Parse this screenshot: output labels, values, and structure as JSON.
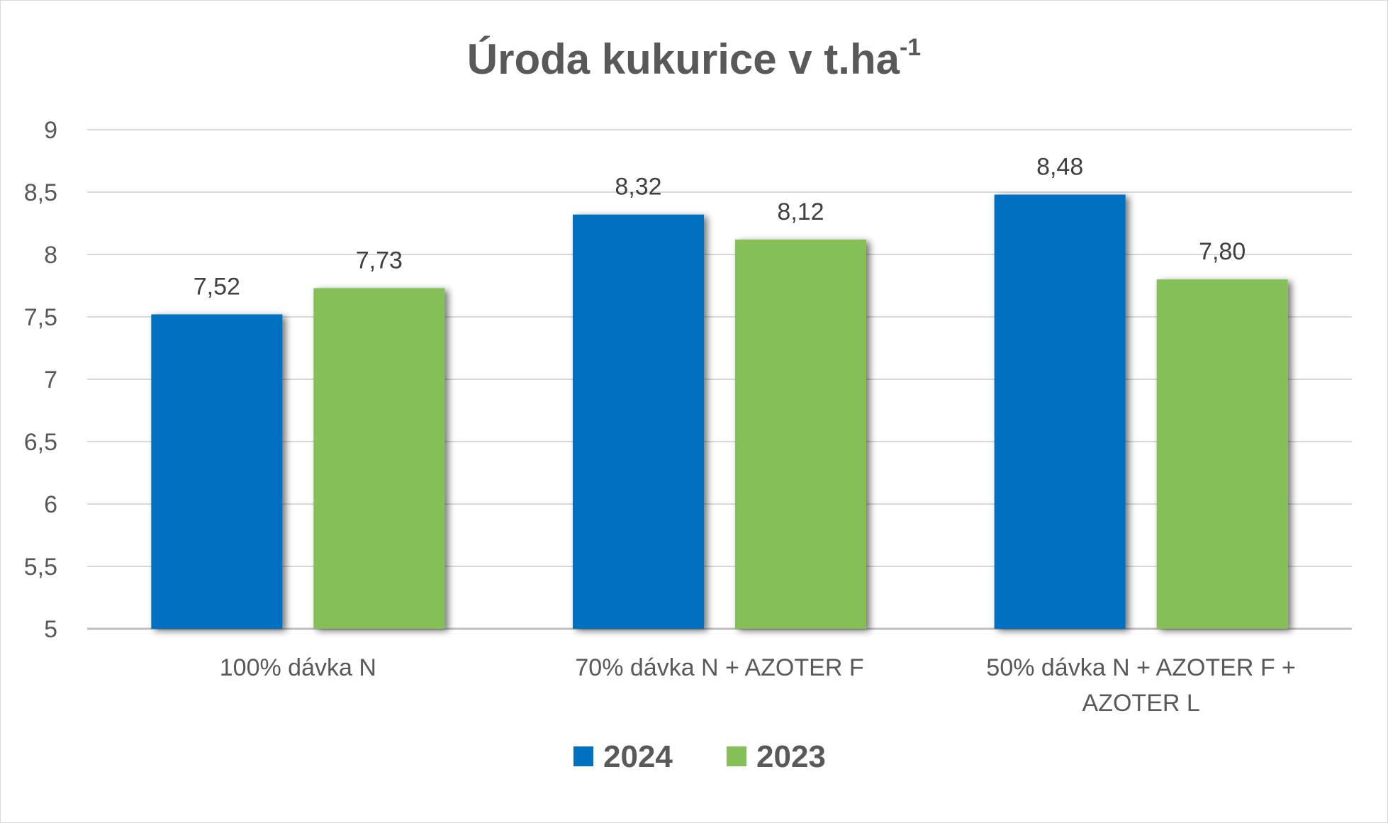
{
  "chart_data": {
    "type": "bar",
    "title": "Úroda kukurice v t.ha",
    "title_superscript": "-1",
    "categories": [
      "100% dávka N",
      "70% dávka N + AZOTER F",
      "50% dávka N + AZOTER F + AZOTER L"
    ],
    "series": [
      {
        "name": "2024",
        "values": [
          7.52,
          8.32,
          8.48
        ],
        "labels": [
          "7,52",
          "8,32",
          "8,48"
        ],
        "color": "#0070C0"
      },
      {
        "name": "2023",
        "values": [
          7.73,
          8.12,
          7.8
        ],
        "labels": [
          "7,73",
          "8,12",
          "7,80"
        ],
        "color": "#84BF58"
      }
    ],
    "ylim": [
      5,
      9
    ],
    "yticks": [
      5,
      5.5,
      6,
      6.5,
      7,
      7.5,
      8,
      8.5,
      9
    ],
    "ytick_labels": [
      "5",
      "5,5",
      "6",
      "6,5",
      "7",
      "7,5",
      "8",
      "8,5",
      "9"
    ],
    "grid": true,
    "legend": "bottom-center",
    "xlabel": "",
    "ylabel": ""
  }
}
